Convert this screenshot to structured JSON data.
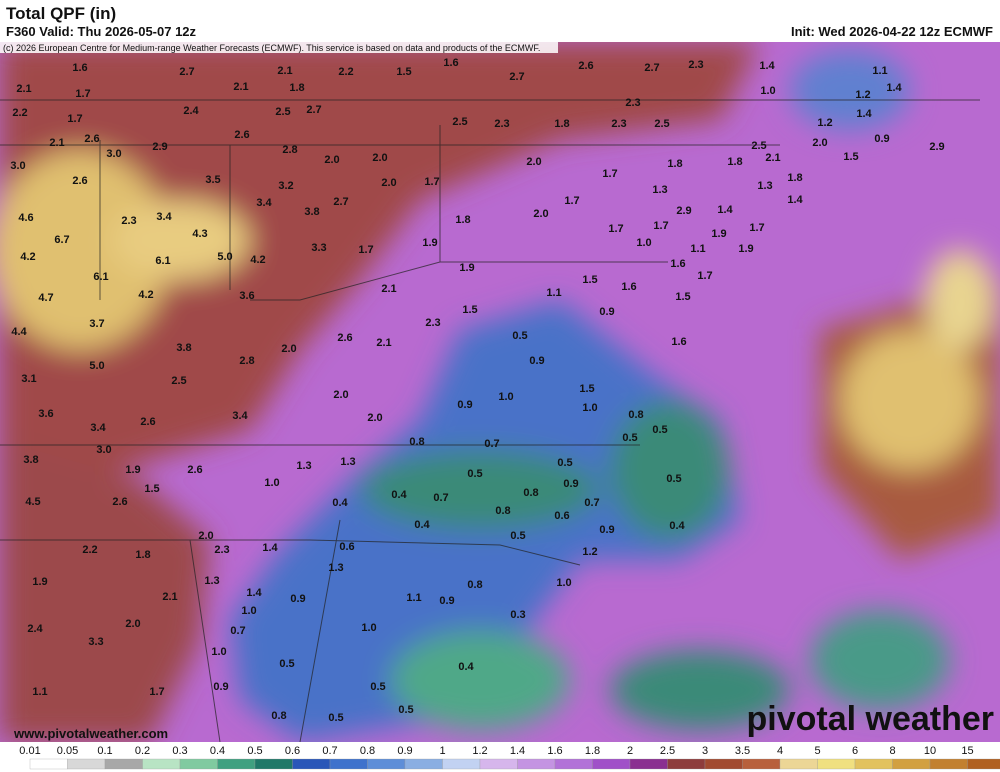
{
  "header": {
    "title": "Total QPF (in)",
    "valid": "F360 Valid: Thu 2026-05-07 12z",
    "init": "Init: Wed 2026-04-22 12z ECMWF"
  },
  "copyright": "(c) 2026 European Centre for Medium-range Weather Forecasts (ECMWF). This service is based on data and products of the ECMWF.",
  "map_labels": [
    "1.6",
    "2.7",
    "2.1",
    "2.2",
    "1.5",
    "1.6",
    "2.7",
    "2.6",
    "2.7",
    "2.3",
    "1.4",
    "1.1",
    "2.1",
    "1.7",
    "2.1",
    "1.8",
    "1.0",
    "1.2",
    "1.4",
    "2.2",
    "1.7",
    "2.4",
    "2.5",
    "2.7",
    "2.3",
    "1.4",
    "2.5",
    "2.3",
    "1.8",
    "2.3",
    "2.5",
    "1.2",
    "2.1",
    "2.6",
    "2.9",
    "2.6",
    "2.8",
    "2.5",
    "2.0",
    "0.9",
    "3.0",
    "3.0",
    "2.0",
    "2.0",
    "2.0",
    "1.8",
    "1.8",
    "2.1",
    "1.8",
    "1.5",
    "2.9",
    "2.6",
    "3.5",
    "3.2",
    "2.0",
    "1.7",
    "1.7",
    "1.3",
    "1.3",
    "3.4",
    "3.8",
    "2.7",
    "2.0",
    "1.7",
    "2.9",
    "1.4",
    "1.4",
    "4.6",
    "2.3",
    "3.4",
    "4.3",
    "1.8",
    "1.7",
    "1.7",
    "1.7",
    "1.9",
    "6.7",
    "3.3",
    "1.7",
    "1.9",
    "1.0",
    "1.1",
    "1.9",
    "4.2",
    "6.1",
    "5.0",
    "4.2",
    "1.9",
    "1.6",
    "1.7",
    "6.1",
    "4.7",
    "4.2",
    "3.6",
    "2.1",
    "1.1",
    "1.5",
    "1.6",
    "1.5",
    "4.4",
    "3.7",
    "2.3",
    "1.5",
    "0.9",
    "0.5",
    "3.8",
    "2.0",
    "2.6",
    "2.1",
    "1.6",
    "5.0",
    "2.8",
    "0.9",
    "3.1",
    "2.5",
    "2.0",
    "1.5",
    "3.6",
    "2.6",
    "3.4",
    "2.0",
    "0.9",
    "1.0",
    "1.0",
    "0.8",
    "3.4",
    "0.5",
    "0.5",
    "0.8",
    "0.7",
    "3.8",
    "3.0",
    "1.3",
    "1.3",
    "0.5",
    "0.5",
    "1.9",
    "2.6",
    "1.0",
    "0.9",
    "0.5",
    "1.5",
    "0.4",
    "0.7",
    "0.8",
    "4.5",
    "2.6",
    "0.4",
    "0.8",
    "0.7",
    "0.4",
    "0.4",
    "0.6",
    "0.5",
    "0.9",
    "2.0",
    "2.2",
    "1.8",
    "2.3",
    "1.4",
    "0.6",
    "1.2",
    "1.3",
    "1.3",
    "1.9",
    "0.8",
    "1.0",
    "1.4",
    "0.9",
    "1.1",
    "0.9",
    "2.1",
    "1.0",
    "2.0",
    "1.0",
    "0.3",
    "2.4",
    "0.7",
    "3.3",
    "1.0",
    "0.5",
    "0.4",
    "1.1",
    "1.7",
    "0.9",
    "0.5",
    "0.5",
    "0.8",
    "0.5"
  ],
  "colorbar": {
    "labels": [
      "0.01",
      "0.05",
      "0.1",
      "0.2",
      "0.3",
      "0.4",
      "0.5",
      "0.6",
      "0.7",
      "0.8",
      "0.9",
      "1",
      "1.2",
      "1.4",
      "1.6",
      "1.8",
      "2",
      "2.5",
      "3",
      "3.5",
      "4",
      "5",
      "6",
      "8",
      "10",
      "15"
    ]
  },
  "footer": {
    "website": "www.pivotalweather.com",
    "logo": "pivotal weather"
  }
}
